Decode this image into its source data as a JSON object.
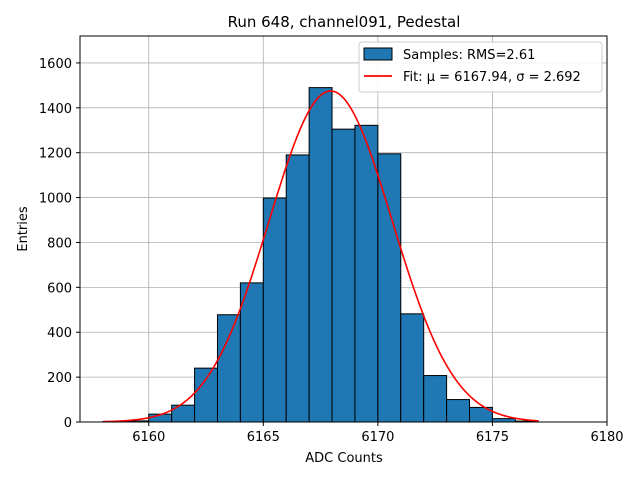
{
  "chart_data": {
    "type": "bar",
    "title": "Run 648, channel091, Pedestal",
    "xlabel": "ADC Counts",
    "ylabel": "Entries",
    "xlim": [
      6157,
      6180
    ],
    "ylim": [
      0,
      1720
    ],
    "xticks": [
      6160,
      6165,
      6170,
      6175,
      6180
    ],
    "yticks": [
      0,
      200,
      400,
      600,
      800,
      1000,
      1200,
      1400,
      1600
    ],
    "grid": true,
    "legend_position": "top-right",
    "bins": [
      {
        "x0": 6158,
        "x1": 6159,
        "value": 2
      },
      {
        "x0": 6159,
        "x1": 6160,
        "value": 5
      },
      {
        "x0": 6160,
        "x1": 6161,
        "value": 35
      },
      {
        "x0": 6161,
        "x1": 6162,
        "value": 75
      },
      {
        "x0": 6162,
        "x1": 6163,
        "value": 240
      },
      {
        "x0": 6163,
        "x1": 6164,
        "value": 478
      },
      {
        "x0": 6164,
        "x1": 6165,
        "value": 620
      },
      {
        "x0": 6165,
        "x1": 6166,
        "value": 998
      },
      {
        "x0": 6166,
        "x1": 6167,
        "value": 1190
      },
      {
        "x0": 6167,
        "x1": 6168,
        "value": 1490
      },
      {
        "x0": 6168,
        "x1": 6169,
        "value": 1305
      },
      {
        "x0": 6169,
        "x1": 6170,
        "value": 1322
      },
      {
        "x0": 6170,
        "x1": 6171,
        "value": 1195
      },
      {
        "x0": 6171,
        "x1": 6172,
        "value": 482
      },
      {
        "x0": 6172,
        "x1": 6173,
        "value": 207
      },
      {
        "x0": 6173,
        "x1": 6174,
        "value": 100
      },
      {
        "x0": 6174,
        "x1": 6175,
        "value": 65
      },
      {
        "x0": 6175,
        "x1": 6176,
        "value": 15
      },
      {
        "x0": 6176,
        "x1": 6177,
        "value": 4
      }
    ],
    "series": [
      {
        "name": "Samples: RMS=2.61",
        "kind": "histogram",
        "color": "#1f77b4",
        "edge_color": "#000000"
      },
      {
        "name": "Fit: μ = 6167.94, σ = 2.692",
        "kind": "gaussian_fit",
        "color": "#ff0000",
        "mu": 6167.94,
        "sigma": 2.692,
        "amplitude": 1475,
        "x_range": [
          6158,
          6177
        ]
      }
    ]
  }
}
